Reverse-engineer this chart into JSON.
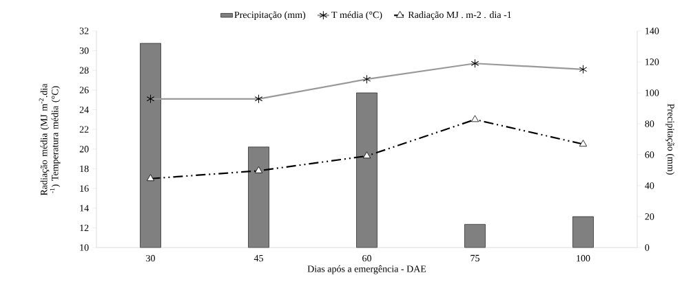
{
  "chart_data": {
    "type": "line",
    "xlabel": "Dias após a emergência - DAE",
    "ylabel": "Radiação média (MJ m$^{-2}$.dia $^{-1}$) Temperatura média (°C)",
    "y2label": "Precipitação (mm)",
    "categories": [
      "30",
      "45",
      "60",
      "75",
      "100"
    ],
    "series": [
      {
        "name": "Precipitação (mm)",
        "type": "bar",
        "axis": "y2",
        "color": "#808080",
        "values": [
          132,
          65,
          100,
          15,
          20
        ]
      },
      {
        "name": "T média (°C)",
        "color": "#999999",
        "marker": "cross",
        "line_style": "solid",
        "values": [
          25.1,
          25.1,
          27.1,
          28.7,
          28.1
        ]
      },
      {
        "name": "Radiação MJ . m-2 . dia -1",
        "color": "#000000",
        "marker": "triangle",
        "line_style": "dashed",
        "values": [
          17.0,
          17.8,
          19.3,
          23.0,
          20.5
        ]
      }
    ],
    "ylim": [
      10,
      32
    ],
    "yticks": [
      10,
      12,
      14,
      16,
      18,
      20,
      22,
      24,
      26,
      28,
      30,
      32
    ],
    "y2lim": [
      0,
      140
    ],
    "y2ticks": [
      0,
      20,
      40,
      60,
      80,
      100,
      120,
      140
    ],
    "legend": "top"
  }
}
